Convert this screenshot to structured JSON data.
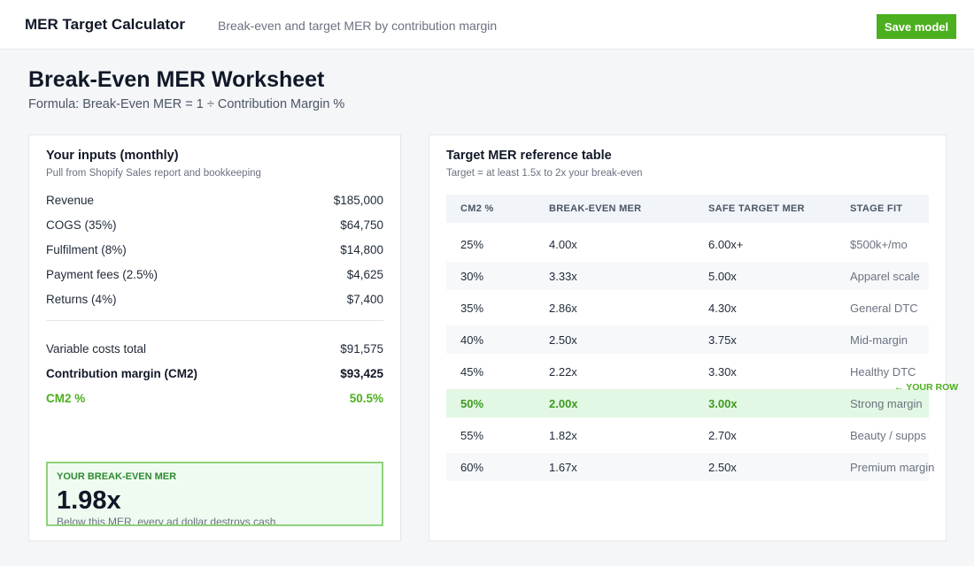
{
  "header": {
    "app_title": "MER Target Calculator",
    "subtitle": "Break-even and target MER by contribution margin",
    "save_label": "Save model"
  },
  "worksheet": {
    "title": "Break-Even MER Worksheet",
    "formula": "Formula: Break-Even MER = 1 ÷ Contribution Margin %"
  },
  "inputs": {
    "title": "Your inputs (monthly)",
    "subtitle": "Pull from Shopify Sales report and bookkeeping",
    "rows": [
      {
        "label": "Revenue",
        "value": "$185,000"
      },
      {
        "label": "COGS (35%)",
        "value": "$64,750"
      },
      {
        "label": "Fulfilment (8%)",
        "value": "$14,800"
      },
      {
        "label": "Payment fees (2.5%)",
        "value": "$4,625"
      },
      {
        "label": "Returns (4%)",
        "value": "$7,400"
      }
    ],
    "totals": [
      {
        "label": "Variable costs total",
        "value": "$91,575"
      },
      {
        "label": "Contribution margin (CM2)",
        "value": "$93,425"
      },
      {
        "label": "CM2 %",
        "value": "50.5%"
      }
    ],
    "break_even": {
      "label": "YOUR BREAK-EVEN MER",
      "value": "1.98x",
      "note": "Below this MER, every ad dollar destroys cash."
    }
  },
  "reference": {
    "title": "Target MER reference table",
    "subtitle": "Target = at least 1.5x to 2x your break-even",
    "columns": [
      "CM2 %",
      "BREAK-EVEN MER",
      "SAFE TARGET MER",
      "STAGE FIT"
    ],
    "rows": [
      [
        "25%",
        "4.00x",
        "6.00x+",
        "$500k+/mo"
      ],
      [
        "30%",
        "3.33x",
        "5.00x",
        "Apparel scale"
      ],
      [
        "35%",
        "2.86x",
        "4.30x",
        "General DTC"
      ],
      [
        "40%",
        "2.50x",
        "3.75x",
        "Mid-margin"
      ],
      [
        "45%",
        "2.22x",
        "3.30x",
        "Healthy DTC"
      ],
      [
        "50%",
        "2.00x",
        "3.00x",
        "Strong margin"
      ],
      [
        "55%",
        "1.82x",
        "2.70x",
        "Beauty / supps"
      ],
      [
        "60%",
        "1.67x",
        "2.50x",
        "Premium margin"
      ]
    ],
    "highlight_marker": "← YOUR ROW"
  },
  "colors": {
    "accent": "#4caf1f",
    "highlight_row": "#e3f8e4",
    "break_even_border": "#8ed27a"
  }
}
